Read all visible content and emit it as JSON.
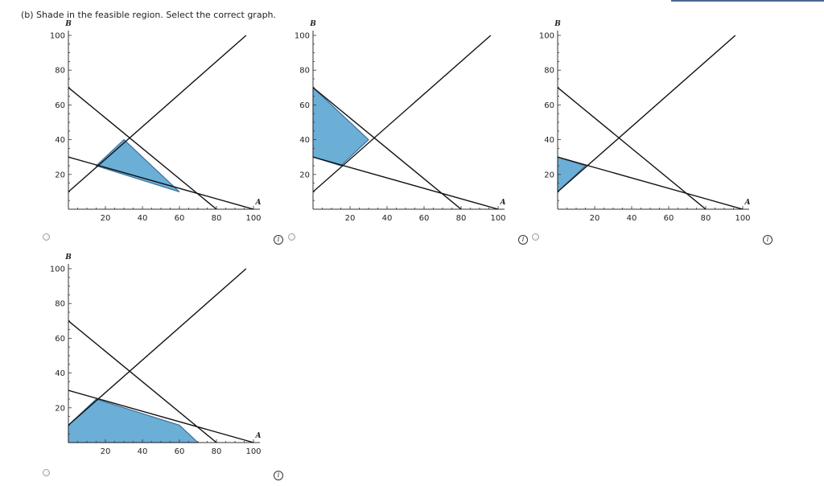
{
  "prompt": "(b)   Shade in the feasible region. Select the correct graph.",
  "axis": {
    "x_name": "A",
    "y_name": "B",
    "x_ticks": [
      20,
      40,
      60,
      80,
      100
    ],
    "y_ticks": [
      20,
      40,
      60,
      80,
      100
    ],
    "x_range": [
      0,
      100
    ],
    "y_range": [
      0,
      100
    ]
  },
  "info_label": "i",
  "colors": {
    "fill": "#6baed6",
    "fill_stroke": "#3f6e9e",
    "line": "#111111",
    "axis": "#333333"
  },
  "chart_data": [
    {
      "type": "line",
      "option": 1,
      "lines": [
        {
          "points": [
            [
              0,
              10
            ],
            [
              96,
              100
            ]
          ]
        },
        {
          "points": [
            [
              0,
              70
            ],
            [
              80,
              0
            ]
          ]
        },
        {
          "points": [
            [
              0,
              30
            ],
            [
              100,
              0
            ]
          ]
        }
      ],
      "feasible_region": [
        [
          15,
          25
        ],
        [
          30,
          40
        ],
        [
          60,
          10
        ]
      ]
    },
    {
      "type": "line",
      "option": 2,
      "lines": [
        {
          "points": [
            [
              0,
              10
            ],
            [
              96,
              100
            ]
          ]
        },
        {
          "points": [
            [
              0,
              70
            ],
            [
              80,
              0
            ]
          ]
        },
        {
          "points": [
            [
              0,
              30
            ],
            [
              100,
              0
            ]
          ]
        }
      ],
      "feasible_region": [
        [
          0,
          30
        ],
        [
          0,
          70
        ],
        [
          30,
          40
        ],
        [
          15,
          25
        ]
      ]
    },
    {
      "type": "line",
      "option": 3,
      "lines": [
        {
          "points": [
            [
              0,
              10
            ],
            [
              96,
              100
            ]
          ]
        },
        {
          "points": [
            [
              0,
              70
            ],
            [
              80,
              0
            ]
          ]
        },
        {
          "points": [
            [
              0,
              30
            ],
            [
              100,
              0
            ]
          ]
        }
      ],
      "feasible_region": [
        [
          0,
          10
        ],
        [
          0,
          30
        ],
        [
          15,
          25
        ]
      ]
    },
    {
      "type": "line",
      "option": 4,
      "lines": [
        {
          "points": [
            [
              0,
              10
            ],
            [
              96,
              100
            ]
          ]
        },
        {
          "points": [
            [
              0,
              70
            ],
            [
              80,
              0
            ]
          ]
        },
        {
          "points": [
            [
              0,
              30
            ],
            [
              100,
              0
            ]
          ]
        }
      ],
      "feasible_region": [
        [
          0,
          0
        ],
        [
          0,
          10
        ],
        [
          15,
          25
        ],
        [
          60,
          10
        ],
        [
          70,
          0
        ]
      ]
    }
  ]
}
